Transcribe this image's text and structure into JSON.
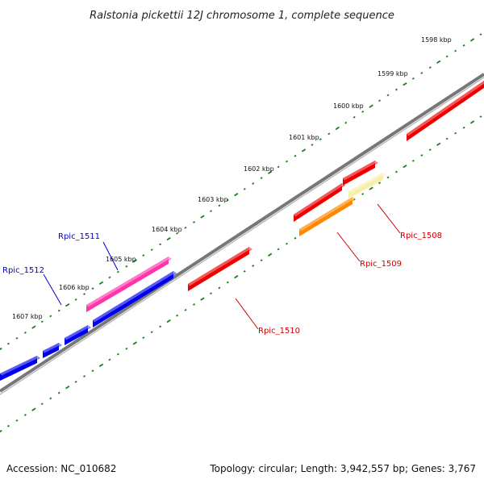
{
  "title": "Ralstonia pickettii 12J chromosome 1, complete sequence",
  "ticks": [
    "1598 kbp",
    "1599 kbp",
    "1600 kbp",
    "1601 kbp",
    "1602 kbp",
    "1603 kbp",
    "1604 kbp",
    "1605 kbp",
    "1606 kbp",
    "1607 kbp"
  ],
  "genes": [
    {
      "label": "Rpic_1508",
      "color": "#cc0000"
    },
    {
      "label": "Rpic_1509",
      "color": "#cc0000"
    },
    {
      "label": "Rpic_1510",
      "color": "#cc0000"
    },
    {
      "label": "Rpic_1511",
      "color": "#0000cc"
    },
    {
      "label": "Rpic_1512",
      "color": "#0000cc"
    }
  ],
  "colors": {
    "forward_gene": "#0000ee",
    "highlight_gene": "#ff33aa",
    "reverse_gene": "#ee0000",
    "orange_gene": "#ff8800",
    "pale_gene": "#f7eeaa",
    "backbone": "#888888",
    "ticks": "#1a7f1a"
  },
  "footer": {
    "accession": "Accession: NC_010682",
    "topology": "Topology: circular; Length: 3,942,557 bp; Genes: 3,767"
  }
}
